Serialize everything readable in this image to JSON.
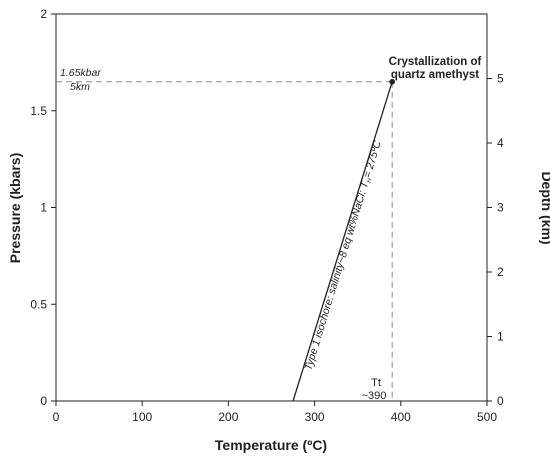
{
  "chart_data": {
    "type": "line",
    "xlabel": "Temperature (ºC)",
    "ylabel": "Pressure (kbars)",
    "y2label": "Depth (km)",
    "xlim": [
      0,
      500
    ],
    "ylim": [
      0,
      2
    ],
    "y2lim": [
      0,
      6
    ],
    "x_ticks": [
      "0",
      "100",
      "200",
      "300",
      "400",
      "500"
    ],
    "y_ticks": [
      "0",
      "0.5",
      "1",
      "1.5",
      "2"
    ],
    "y2_ticks": [
      "0",
      "1",
      "2",
      "3",
      "4",
      "5"
    ],
    "grid": false,
    "series": [
      {
        "x": [
          275,
          390
        ],
        "y": [
          0,
          1.65
        ]
      }
    ],
    "isochore_label": {
      "main": "Type 1 isochore: salinity~8 eq wt%NaCl: T",
      "subscript": "H",
      "tail": "= 275ºC"
    },
    "reference_lines": {
      "pressure": 1.65,
      "temperature": 390
    },
    "point": {
      "x": 390,
      "y": 1.65,
      "label_line1": "Crystallization of",
      "label_line2": "quartz amethyst"
    },
    "pressure_label": "1.65kbar",
    "depth_label": "5km",
    "tt_label": "Tt",
    "tt_value": "~390"
  }
}
